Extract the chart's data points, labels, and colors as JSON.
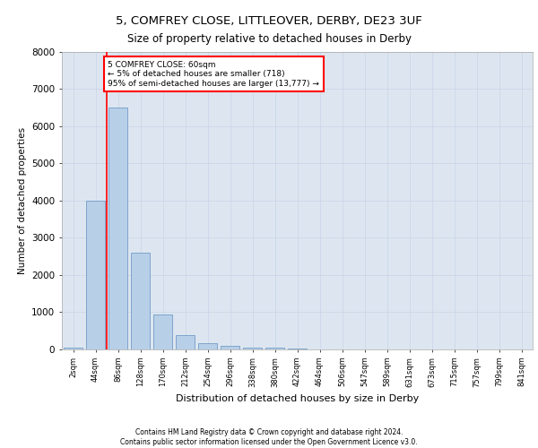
{
  "title": "5, COMFREY CLOSE, LITTLEOVER, DERBY, DE23 3UF",
  "subtitle": "Size of property relative to detached houses in Derby",
  "xlabel": "Distribution of detached houses by size in Derby",
  "ylabel": "Number of detached properties",
  "categories": [
    "2sqm",
    "44sqm",
    "86sqm",
    "128sqm",
    "170sqm",
    "212sqm",
    "254sqm",
    "296sqm",
    "338sqm",
    "380sqm",
    "422sqm",
    "464sqm",
    "506sqm",
    "547sqm",
    "589sqm",
    "631sqm",
    "673sqm",
    "715sqm",
    "757sqm",
    "799sqm",
    "841sqm"
  ],
  "values": [
    50,
    4000,
    6500,
    2600,
    950,
    380,
    170,
    100,
    60,
    50,
    30,
    0,
    0,
    0,
    0,
    0,
    0,
    0,
    0,
    0,
    0
  ],
  "bar_color": "#b8cfe8",
  "bar_edge_color": "#6090c0",
  "grid_color": "#c8d4e8",
  "background_color": "#dde6f0",
  "ylim": [
    0,
    8000
  ],
  "yticks": [
    0,
    1000,
    2000,
    3000,
    4000,
    5000,
    6000,
    7000,
    8000
  ],
  "red_line_x": 1.5,
  "ann_line1": "5 COMFREY CLOSE: 60sqm",
  "ann_line2": "← 5% of detached houses are smaller (718)",
  "ann_line3": "95% of semi-detached houses are larger (13,777) →",
  "footer_line1": "Contains HM Land Registry data © Crown copyright and database right 2024.",
  "footer_line2": "Contains public sector information licensed under the Open Government Licence v3.0."
}
